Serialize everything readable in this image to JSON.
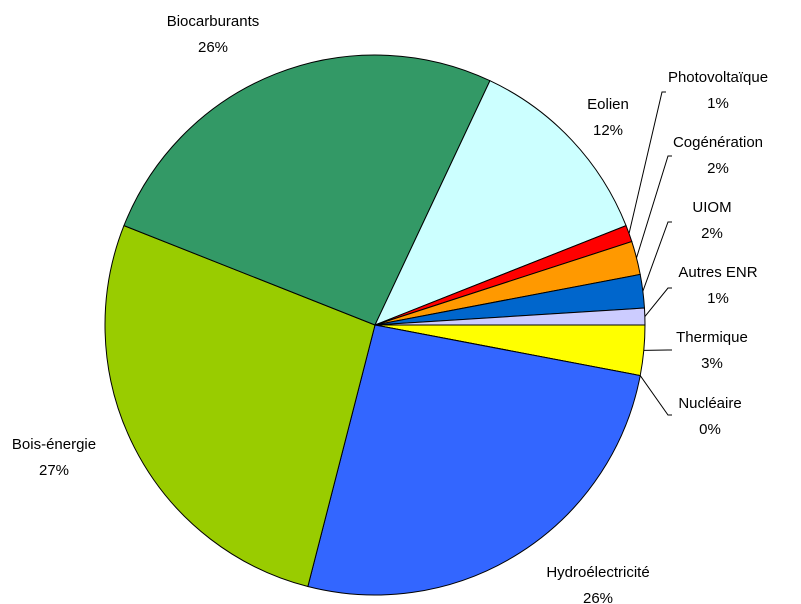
{
  "chart_data": {
    "type": "pie",
    "categories": [
      "Thermique",
      "Nucléaire",
      "Hydroélectricité",
      "Bois-énergie",
      "Biocarburants",
      "Eolien",
      "Photovoltaïque",
      "Cogénération",
      "UIOM",
      "Autres ENR"
    ],
    "values": [
      3,
      0,
      26,
      27,
      26,
      12,
      1,
      2,
      2,
      1
    ],
    "value_labels": [
      "3%",
      "0%",
      "26%",
      "27%",
      "26%",
      "12%",
      "1%",
      "2%",
      "2%",
      "1%"
    ],
    "colors": [
      "#ffff00",
      "#993366",
      "#3366ff",
      "#99cc00",
      "#339966",
      "#ccffff",
      "#ff0000",
      "#ff9900",
      "#0066cc",
      "#ccccff"
    ]
  }
}
